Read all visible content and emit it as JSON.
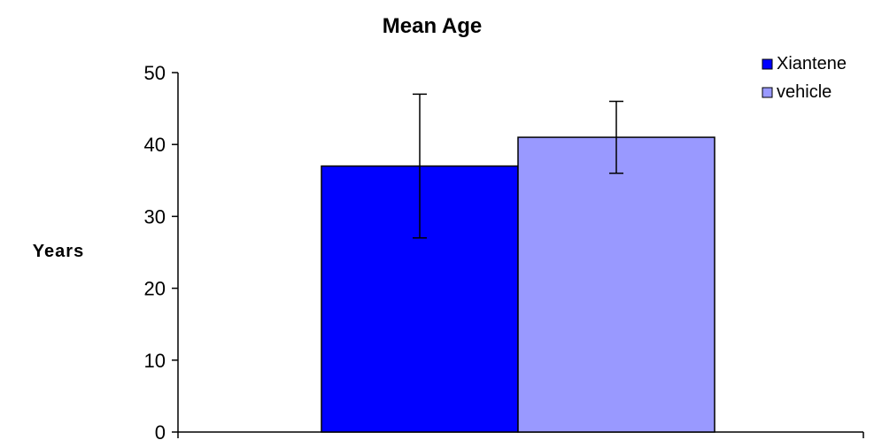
{
  "chart_data": {
    "type": "bar",
    "title": "Mean Age",
    "xlabel": "",
    "ylabel": "Years",
    "ylim": [
      0,
      50
    ],
    "yticks": [
      "0",
      "10",
      "20",
      "30",
      "40",
      "50"
    ],
    "grid": false,
    "legend_position": "top-right",
    "series": [
      {
        "name": "Xiantene",
        "value": 37,
        "error": 10,
        "color": "#0000ff"
      },
      {
        "name": "vehicle",
        "value": 41,
        "error": 5,
        "color": "#9999ff"
      }
    ]
  }
}
